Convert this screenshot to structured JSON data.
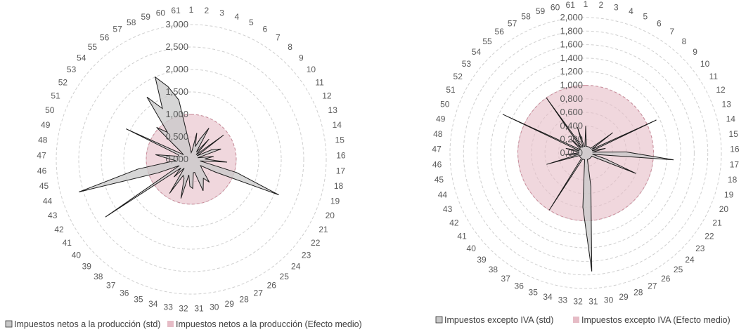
{
  "chart_data": [
    {
      "type": "radar",
      "categories": [
        "1",
        "2",
        "3",
        "4",
        "5",
        "6",
        "7",
        "8",
        "9",
        "10",
        "11",
        "12",
        "13",
        "14",
        "15",
        "16",
        "17",
        "18",
        "19",
        "20",
        "21",
        "22",
        "23",
        "24",
        "25",
        "26",
        "27",
        "28",
        "29",
        "30",
        "31",
        "32",
        "33",
        "34",
        "35",
        "36",
        "37",
        "38",
        "39",
        "40",
        "41",
        "42",
        "43",
        "44",
        "45",
        "46",
        "47",
        "48",
        "49",
        "50",
        "51",
        "52",
        "53",
        "54",
        "55",
        "56",
        "57",
        "58",
        "59",
        "60",
        "61"
      ],
      "rticks": [
        0,
        500,
        1000,
        1500,
        2000,
        2500,
        3000
      ],
      "rtick_labels": [
        "0,000",
        "0,500",
        "1,000",
        "1,500",
        "2,000",
        "2,500",
        "3,000"
      ],
      "rlim": [
        0,
        3000
      ],
      "grid": true,
      "legend_position": "bottom",
      "series": [
        {
          "name": "Impuestos netos a la producción (std)",
          "color": "#c8c8c8",
          "values": [
            150,
            200,
            600,
            300,
            500,
            800,
            200,
            600,
            150,
            900,
            150,
            500,
            700,
            150,
            500,
            300,
            800,
            200,
            1050,
            2100,
            600,
            250,
            300,
            400,
            650,
            500,
            600,
            750,
            300,
            300,
            650,
            600,
            350,
            900,
            450,
            400,
            900,
            250,
            550,
            300,
            2300,
            300,
            800,
            2600,
            1200,
            350,
            500,
            800,
            300,
            300,
            1600,
            200,
            300,
            1050,
            800,
            1700,
            1300,
            2000,
            1700,
            1350,
            300
          ]
        },
        {
          "name": "Impuestos netos a la producción (Efecto medio)",
          "color": "#e6bcc6",
          "values": [
            1000,
            1000,
            1000,
            1000,
            1000,
            1000,
            1000,
            1000,
            1000,
            1000,
            1000,
            1000,
            1000,
            1000,
            1000,
            1000,
            1000,
            1000,
            1000,
            1000,
            1000,
            1000,
            1000,
            1000,
            1000,
            1000,
            1000,
            1000,
            1000,
            1000,
            1000,
            1000,
            1000,
            1000,
            1000,
            1000,
            1000,
            1000,
            1000,
            1000,
            1000,
            1000,
            1000,
            1000,
            1000,
            1000,
            1000,
            1000,
            1000,
            1000,
            1000,
            1000,
            1000,
            1000,
            1000,
            1000,
            1000,
            1000,
            1000,
            1000,
            1000
          ]
        }
      ]
    },
    {
      "type": "radar",
      "categories": [
        "1",
        "2",
        "3",
        "4",
        "5",
        "6",
        "7",
        "8",
        "9",
        "10",
        "11",
        "12",
        "13",
        "14",
        "15",
        "16",
        "17",
        "18",
        "19",
        "20",
        "21",
        "22",
        "23",
        "24",
        "25",
        "26",
        "27",
        "28",
        "29",
        "30",
        "31",
        "32",
        "33",
        "34",
        "35",
        "36",
        "37",
        "38",
        "39",
        "40",
        "41",
        "42",
        "43",
        "44",
        "45",
        "46",
        "47",
        "48",
        "49",
        "50",
        "51",
        "52",
        "53",
        "54",
        "55",
        "56",
        "57",
        "58",
        "59",
        "60",
        "61"
      ],
      "rticks": [
        0,
        200,
        400,
        600,
        800,
        1000,
        1200,
        1400,
        1600,
        1800,
        2000
      ],
      "rtick_labels": [
        "0,000",
        "0,200",
        "0,400",
        "0,600",
        "0,800",
        "1,000",
        "1,200",
        "1,400",
        "1,600",
        "1,800",
        "2,000"
      ],
      "rlim": [
        0,
        2000
      ],
      "grid": true,
      "legend_position": "bottom",
      "series": [
        {
          "name": "Impuestos excepto IVA (std)",
          "color": "#c8c8c8",
          "values": [
            400,
            100,
            100,
            100,
            100,
            100,
            100,
            100,
            100,
            500,
            100,
            1150,
            100,
            300,
            100,
            600,
            1300,
            100,
            300,
            800,
            100,
            100,
            100,
            100,
            100,
            100,
            100,
            100,
            100,
            500,
            1750,
            800,
            100,
            100,
            100,
            100,
            1000,
            100,
            100,
            100,
            100,
            100,
            100,
            600,
            100,
            300,
            100,
            100,
            300,
            100,
            1350,
            100,
            100,
            300,
            100,
            1000,
            100,
            100,
            400,
            100,
            100
          ]
        },
        {
          "name": "Impuestos excepto IVA (Efecto medio)",
          "color": "#e6bcc6",
          "values": [
            1000,
            1000,
            1000,
            1000,
            1000,
            1000,
            1000,
            1000,
            1000,
            1000,
            1000,
            1000,
            1000,
            1000,
            1000,
            1000,
            1000,
            1000,
            1000,
            1000,
            1000,
            1000,
            1000,
            1000,
            1000,
            1000,
            1000,
            1000,
            1000,
            1000,
            1000,
            1000,
            1000,
            1000,
            1000,
            1000,
            1000,
            1000,
            1000,
            1000,
            1000,
            1000,
            1000,
            1000,
            1000,
            1000,
            1000,
            1000,
            1000,
            1000,
            1000,
            1000,
            1000,
            1000,
            1000,
            1000,
            1000,
            1000,
            1000,
            1000,
            1000
          ]
        }
      ]
    }
  ]
}
